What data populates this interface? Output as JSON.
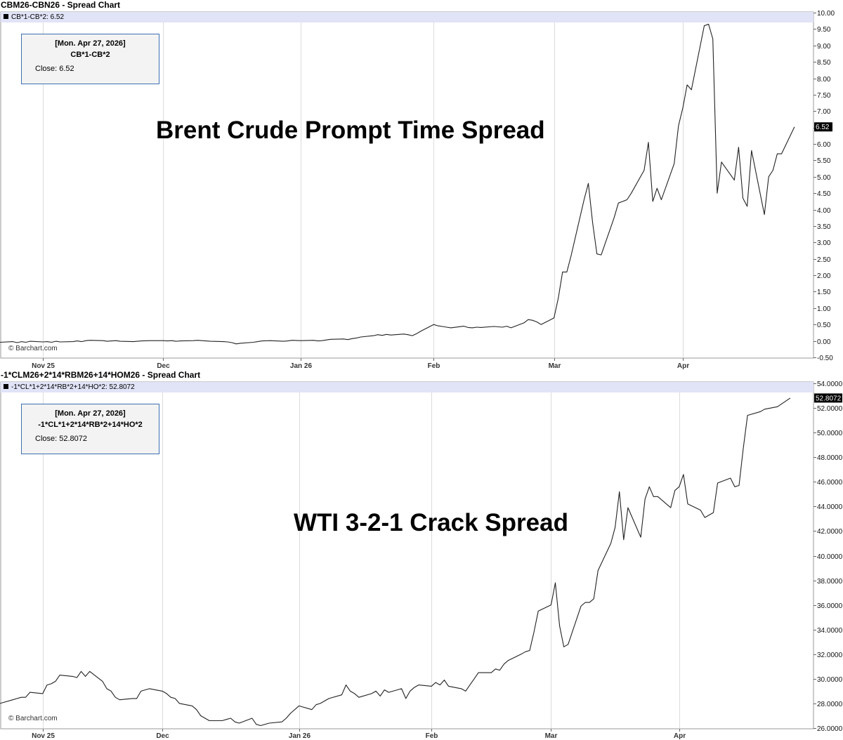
{
  "charts": [
    {
      "title": "CBM26-CBN26 - Spread Chart",
      "legend": "CB*1-CB*2: 6.52",
      "info": {
        "date": "[Mon. Apr 27, 2026]",
        "symbol": "CB*1-CB*2",
        "close": "Close: 6.52"
      },
      "overlay": "Brent Crude Prompt Time Spread",
      "watermark": "© Barchart.com",
      "last_label": "6.52"
    },
    {
      "title": "-1*CLM26+2*14*RBM26+14*HOM26 - Spread Chart",
      "legend": "-1*CL*1+2*14*RB*2+14*HO*2: 52.8072",
      "info": {
        "date": "[Mon. Apr 27, 2026]",
        "symbol": "-1*CL*1+2*14*RB*2+14*HO*2",
        "close": "Close: 52.8072"
      },
      "overlay": "WTI 3-2-1 Crack Spread",
      "watermark": "© Barchart.com",
      "last_label": "52.8072"
    }
  ],
  "chart_data": [
    {
      "type": "line",
      "title": "CBM26-CBN26 - Spread Chart",
      "series": [
        {
          "name": "CB*1-CB*2"
        }
      ],
      "x_ticks": [
        "Nov 25",
        "Dec",
        "Jan 26",
        "Feb",
        "Mar",
        "Apr"
      ],
      "x_tick_dates": [
        "2025-11-03",
        "2025-12-01",
        "2026-01-02",
        "2026-02-02",
        "2026-03-02",
        "2026-04-01"
      ],
      "ylim": [
        -0.5,
        10.0
      ],
      "y_ticks": [
        "-0.50",
        "0.00",
        "0.50",
        "1.00",
        "1.50",
        "2.00",
        "2.50",
        "3.00",
        "3.50",
        "4.00",
        "4.50",
        "5.00",
        "5.50",
        "6.00",
        "6.50",
        "7.00",
        "7.50",
        "8.00",
        "8.50",
        "9.00",
        "9.50",
        "10.00"
      ],
      "last_value": 6.52,
      "points": [
        [
          "2025-10-24",
          -0.04
        ],
        [
          "2025-10-27",
          -0.02
        ],
        [
          "2025-10-28",
          -0.05
        ],
        [
          "2025-10-29",
          -0.02
        ],
        [
          "2025-10-30",
          -0.04
        ],
        [
          "2025-10-31",
          -0.01
        ],
        [
          "2025-11-03",
          -0.03
        ],
        [
          "2025-11-04",
          -0.02
        ],
        [
          "2025-11-05",
          -0.04
        ],
        [
          "2025-11-06",
          -0.01
        ],
        [
          "2025-11-07",
          -0.03
        ],
        [
          "2025-11-10",
          -0.02
        ],
        [
          "2025-11-11",
          0.0
        ],
        [
          "2025-11-12",
          -0.02
        ],
        [
          "2025-11-13",
          0.01
        ],
        [
          "2025-11-14",
          0.02
        ],
        [
          "2025-11-17",
          0.01
        ],
        [
          "2025-11-18",
          -0.01
        ],
        [
          "2025-11-19",
          0.0
        ],
        [
          "2025-11-20",
          0.01
        ],
        [
          "2025-11-21",
          -0.01
        ],
        [
          "2025-11-24",
          -0.02
        ],
        [
          "2025-11-25",
          -0.01
        ],
        [
          "2025-11-26",
          0.0
        ],
        [
          "2025-11-28",
          0.01
        ],
        [
          "2025-12-01",
          0.01
        ],
        [
          "2025-12-02",
          0.0
        ],
        [
          "2025-12-03",
          0.01
        ],
        [
          "2025-12-04",
          -0.01
        ],
        [
          "2025-12-05",
          0.0
        ],
        [
          "2025-12-08",
          0.01
        ],
        [
          "2025-12-09",
          0.02
        ],
        [
          "2025-12-10",
          0.01
        ],
        [
          "2025-12-11",
          0.0
        ],
        [
          "2025-12-12",
          -0.01
        ],
        [
          "2025-12-15",
          -0.02
        ],
        [
          "2025-12-16",
          -0.03
        ],
        [
          "2025-12-17",
          -0.05
        ],
        [
          "2025-12-18",
          -0.09
        ],
        [
          "2025-12-19",
          -0.07
        ],
        [
          "2025-12-22",
          -0.04
        ],
        [
          "2025-12-23",
          -0.02
        ],
        [
          "2025-12-24",
          0.0
        ],
        [
          "2025-12-26",
          0.01
        ],
        [
          "2025-12-29",
          -0.01
        ],
        [
          "2025-12-30",
          0.0
        ],
        [
          "2025-12-31",
          0.02
        ],
        [
          "2026-01-02",
          0.01
        ],
        [
          "2026-01-05",
          0.02
        ],
        [
          "2026-01-06",
          0.0
        ],
        [
          "2026-01-07",
          0.01
        ],
        [
          "2026-01-08",
          0.03
        ],
        [
          "2026-01-09",
          0.05
        ],
        [
          "2026-01-12",
          0.06
        ],
        [
          "2026-01-13",
          0.04
        ],
        [
          "2026-01-14",
          0.07
        ],
        [
          "2026-01-15",
          0.09
        ],
        [
          "2026-01-16",
          0.12
        ],
        [
          "2026-01-19",
          0.16
        ],
        [
          "2026-01-20",
          0.19
        ],
        [
          "2026-01-21",
          0.17
        ],
        [
          "2026-01-22",
          0.2
        ],
        [
          "2026-01-23",
          0.18
        ],
        [
          "2026-01-26",
          0.21
        ],
        [
          "2026-01-27",
          0.19
        ],
        [
          "2026-01-28",
          0.16
        ],
        [
          "2026-01-29",
          0.22
        ],
        [
          "2026-01-30",
          0.3
        ],
        [
          "2026-02-02",
          0.5
        ],
        [
          "2026-02-03",
          0.46
        ],
        [
          "2026-02-04",
          0.44
        ],
        [
          "2026-02-05",
          0.42
        ],
        [
          "2026-02-06",
          0.4
        ],
        [
          "2026-02-09",
          0.45
        ],
        [
          "2026-02-10",
          0.41
        ],
        [
          "2026-02-11",
          0.4
        ],
        [
          "2026-02-12",
          0.42
        ],
        [
          "2026-02-13",
          0.41
        ],
        [
          "2026-02-16",
          0.44
        ],
        [
          "2026-02-17",
          0.43
        ],
        [
          "2026-02-18",
          0.42
        ],
        [
          "2026-02-19",
          0.45
        ],
        [
          "2026-02-20",
          0.4
        ],
        [
          "2026-02-23",
          0.55
        ],
        [
          "2026-02-24",
          0.65
        ],
        [
          "2026-02-25",
          0.63
        ],
        [
          "2026-02-26",
          0.58
        ],
        [
          "2026-02-27",
          0.5
        ],
        [
          "2026-03-02",
          0.7
        ],
        [
          "2026-03-03",
          1.3
        ],
        [
          "2026-03-04",
          2.1
        ],
        [
          "2026-03-05",
          2.1
        ],
        [
          "2026-03-06",
          2.6
        ],
        [
          "2026-03-09",
          4.3
        ],
        [
          "2026-03-10",
          4.8
        ],
        [
          "2026-03-11",
          3.6
        ],
        [
          "2026-03-12",
          2.65
        ],
        [
          "2026-03-13",
          2.62
        ],
        [
          "2026-03-16",
          3.75
        ],
        [
          "2026-03-17",
          4.2
        ],
        [
          "2026-03-18",
          4.25
        ],
        [
          "2026-03-19",
          4.3
        ],
        [
          "2026-03-20",
          4.5
        ],
        [
          "2026-03-23",
          5.2
        ],
        [
          "2026-03-24",
          6.05
        ],
        [
          "2026-03-25",
          4.25
        ],
        [
          "2026-03-26",
          4.65
        ],
        [
          "2026-03-27",
          4.3
        ],
        [
          "2026-03-30",
          5.4
        ],
        [
          "2026-03-31",
          6.55
        ],
        [
          "2026-04-01",
          7.1
        ],
        [
          "2026-04-02",
          7.8
        ],
        [
          "2026-04-03",
          7.65
        ],
        [
          "2026-04-06",
          9.6
        ],
        [
          "2026-04-07",
          9.65
        ],
        [
          "2026-04-08",
          9.2
        ],
        [
          "2026-04-09",
          4.5
        ],
        [
          "2026-04-10",
          5.45
        ],
        [
          "2026-04-13",
          4.9
        ],
        [
          "2026-04-14",
          5.9
        ],
        [
          "2026-04-15",
          4.35
        ],
        [
          "2026-04-16",
          4.1
        ],
        [
          "2026-04-17",
          5.8
        ],
        [
          "2026-04-20",
          3.85
        ],
        [
          "2026-04-21",
          5.0
        ],
        [
          "2026-04-22",
          5.2
        ],
        [
          "2026-04-23",
          5.7
        ],
        [
          "2026-04-24",
          5.7
        ],
        [
          "2026-04-27",
          6.52
        ]
      ]
    },
    {
      "type": "line",
      "title": "-1*CLM26+2*14*RBM26+14*HOM26 - Spread Chart",
      "series": [
        {
          "name": "-1*CL*1+2*14*RB*2+14*HO*2"
        }
      ],
      "x_ticks": [
        "Nov 25",
        "Dec",
        "Jan 26",
        "Feb",
        "Mar",
        "Apr"
      ],
      "x_tick_dates": [
        "2025-11-03",
        "2025-12-01",
        "2026-01-02",
        "2026-02-02",
        "2026-03-02",
        "2026-04-01"
      ],
      "ylim": [
        26.0,
        54.0
      ],
      "y_ticks": [
        "26.0000",
        "28.0000",
        "30.0000",
        "32.0000",
        "34.0000",
        "36.0000",
        "38.0000",
        "40.0000",
        "42.0000",
        "44.0000",
        "46.0000",
        "48.0000",
        "50.0000",
        "52.0000",
        "54.0000"
      ],
      "last_value": 52.8072,
      "points": [
        [
          "2025-10-24",
          28.0
        ],
        [
          "2025-10-27",
          28.3
        ],
        [
          "2025-10-28",
          28.4
        ],
        [
          "2025-10-29",
          28.5
        ],
        [
          "2025-10-30",
          28.5
        ],
        [
          "2025-10-31",
          28.9
        ],
        [
          "2025-11-03",
          28.8
        ],
        [
          "2025-11-04",
          29.5
        ],
        [
          "2025-11-05",
          29.6
        ],
        [
          "2025-11-06",
          29.8
        ],
        [
          "2025-11-07",
          30.3
        ],
        [
          "2025-11-10",
          30.2
        ],
        [
          "2025-11-11",
          30.1
        ],
        [
          "2025-11-12",
          30.6
        ],
        [
          "2025-11-13",
          30.2
        ],
        [
          "2025-11-14",
          30.6
        ],
        [
          "2025-11-17",
          29.8
        ],
        [
          "2025-11-18",
          29.2
        ],
        [
          "2025-11-19",
          29.0
        ],
        [
          "2025-11-20",
          28.5
        ],
        [
          "2025-11-21",
          28.3
        ],
        [
          "2025-11-24",
          28.4
        ],
        [
          "2025-11-25",
          28.4
        ],
        [
          "2025-11-26",
          29.0
        ],
        [
          "2025-11-28",
          29.2
        ],
        [
          "2025-12-01",
          29.0
        ],
        [
          "2025-12-02",
          28.8
        ],
        [
          "2025-12-03",
          28.5
        ],
        [
          "2025-12-04",
          28.4
        ],
        [
          "2025-12-05",
          28.0
        ],
        [
          "2025-12-08",
          27.8
        ],
        [
          "2025-12-09",
          27.5
        ],
        [
          "2025-12-10",
          27.0
        ],
        [
          "2025-12-11",
          26.8
        ],
        [
          "2025-12-12",
          26.6
        ],
        [
          "2025-12-15",
          26.6
        ],
        [
          "2025-12-16",
          26.7
        ],
        [
          "2025-12-17",
          26.8
        ],
        [
          "2025-12-18",
          26.5
        ],
        [
          "2025-12-19",
          26.4
        ],
        [
          "2025-12-22",
          26.8
        ],
        [
          "2025-12-23",
          26.3
        ],
        [
          "2025-12-24",
          26.2
        ],
        [
          "2025-12-26",
          26.4
        ],
        [
          "2025-12-29",
          26.5
        ],
        [
          "2025-12-30",
          26.8
        ],
        [
          "2025-12-31",
          27.2
        ],
        [
          "2026-01-02",
          27.8
        ],
        [
          "2026-01-05",
          27.5
        ],
        [
          "2026-01-06",
          27.9
        ],
        [
          "2026-01-07",
          28.0
        ],
        [
          "2026-01-08",
          28.2
        ],
        [
          "2026-01-09",
          28.4
        ],
        [
          "2026-01-12",
          28.7
        ],
        [
          "2026-01-13",
          29.5
        ],
        [
          "2026-01-14",
          29.0
        ],
        [
          "2026-01-15",
          28.8
        ],
        [
          "2026-01-16",
          28.5
        ],
        [
          "2026-01-19",
          28.8
        ],
        [
          "2026-01-20",
          29.0
        ],
        [
          "2026-01-21",
          28.6
        ],
        [
          "2026-01-22",
          29.1
        ],
        [
          "2026-01-23",
          28.9
        ],
        [
          "2026-01-26",
          29.2
        ],
        [
          "2026-01-27",
          28.4
        ],
        [
          "2026-01-28",
          29.0
        ],
        [
          "2026-01-29",
          29.3
        ],
        [
          "2026-01-30",
          29.5
        ],
        [
          "2026-02-02",
          29.4
        ],
        [
          "2026-02-03",
          29.7
        ],
        [
          "2026-02-04",
          29.5
        ],
        [
          "2026-02-05",
          29.9
        ],
        [
          "2026-02-06",
          29.4
        ],
        [
          "2026-02-09",
          29.2
        ],
        [
          "2026-02-10",
          29.0
        ],
        [
          "2026-02-11",
          29.5
        ],
        [
          "2026-02-12",
          30.0
        ],
        [
          "2026-02-13",
          30.5
        ],
        [
          "2026-02-16",
          30.5
        ],
        [
          "2026-02-17",
          30.8
        ],
        [
          "2026-02-18",
          30.7
        ],
        [
          "2026-02-19",
          31.2
        ],
        [
          "2026-02-20",
          31.5
        ],
        [
          "2026-02-23",
          32.0
        ],
        [
          "2026-02-24",
          32.2
        ],
        [
          "2026-02-25",
          32.3
        ],
        [
          "2026-02-26",
          33.8
        ],
        [
          "2026-02-27",
          35.5
        ],
        [
          "2026-03-02",
          36.0
        ],
        [
          "2026-03-03",
          37.8
        ],
        [
          "2026-03-04",
          34.3
        ],
        [
          "2026-03-05",
          32.6
        ],
        [
          "2026-03-06",
          32.8
        ],
        [
          "2026-03-09",
          35.9
        ],
        [
          "2026-03-10",
          36.2
        ],
        [
          "2026-03-11",
          36.2
        ],
        [
          "2026-03-12",
          36.5
        ],
        [
          "2026-03-13",
          38.8
        ],
        [
          "2026-03-16",
          41.0
        ],
        [
          "2026-03-17",
          42.3
        ],
        [
          "2026-03-18",
          45.2
        ],
        [
          "2026-03-19",
          41.3
        ],
        [
          "2026-03-20",
          43.9
        ],
        [
          "2026-03-23",
          41.5
        ],
        [
          "2026-03-24",
          44.6
        ],
        [
          "2026-03-25",
          45.6
        ],
        [
          "2026-03-26",
          44.8
        ],
        [
          "2026-03-27",
          44.8
        ],
        [
          "2026-03-30",
          43.9
        ],
        [
          "2026-03-31",
          45.3
        ],
        [
          "2026-04-01",
          45.6
        ],
        [
          "2026-04-02",
          46.6
        ],
        [
          "2026-04-03",
          44.2
        ],
        [
          "2026-04-06",
          43.7
        ],
        [
          "2026-04-07",
          43.1
        ],
        [
          "2026-04-08",
          43.3
        ],
        [
          "2026-04-09",
          43.5
        ],
        [
          "2026-04-10",
          45.9
        ],
        [
          "2026-04-13",
          46.3
        ],
        [
          "2026-04-14",
          45.6
        ],
        [
          "2026-04-15",
          45.7
        ],
        [
          "2026-04-16",
          48.7
        ],
        [
          "2026-04-17",
          51.4
        ],
        [
          "2026-04-20",
          51.7
        ],
        [
          "2026-04-21",
          51.9
        ],
        [
          "2026-04-24",
          52.1
        ],
        [
          "2026-04-27",
          52.8072
        ]
      ]
    }
  ]
}
